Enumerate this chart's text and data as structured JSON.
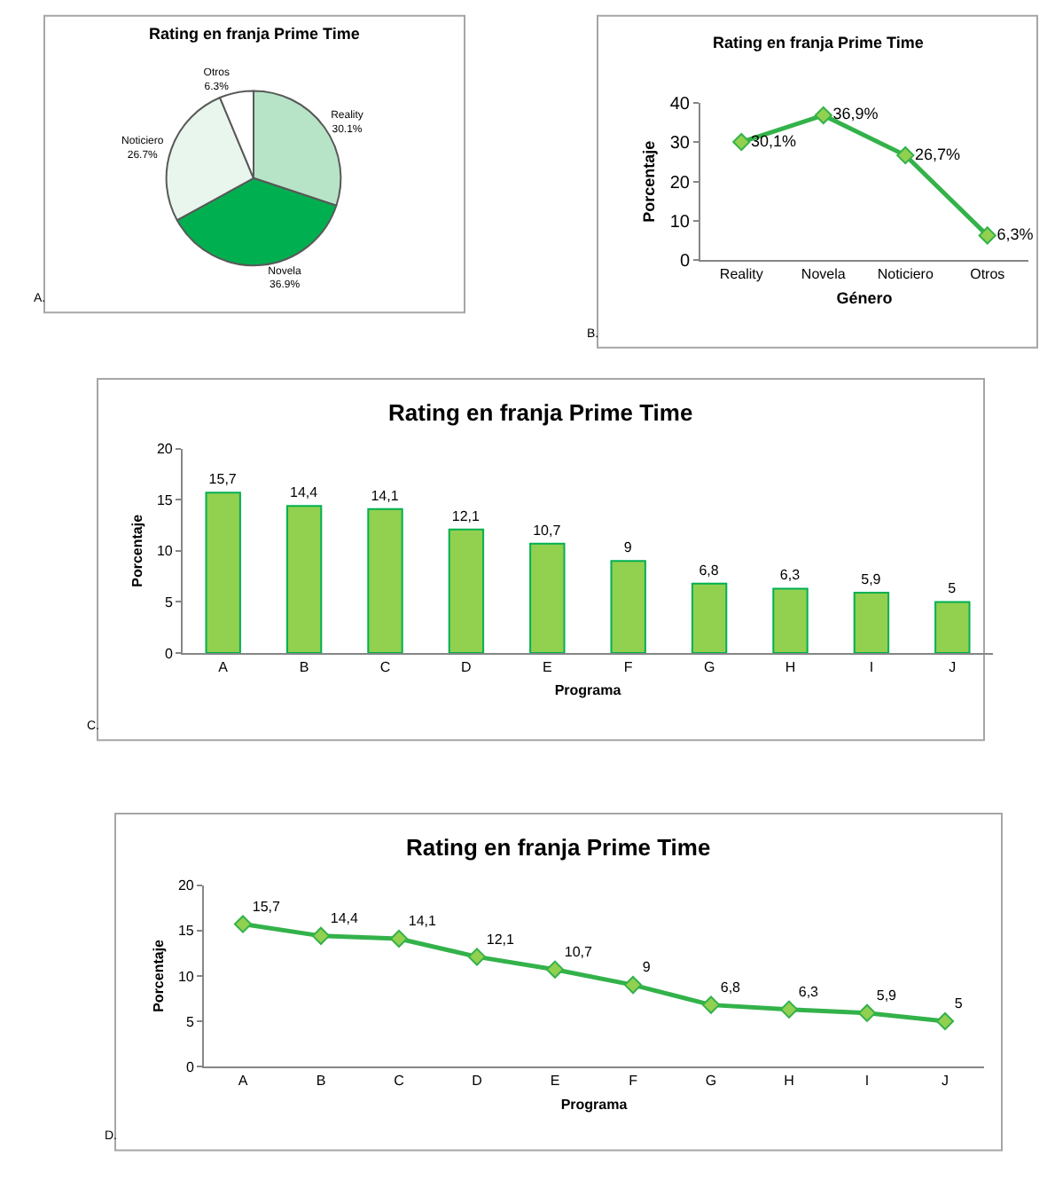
{
  "chart_data": [
    {
      "type": "pie",
      "title": "Rating en franja Prime Time",
      "categories": [
        "Reality",
        "Novela",
        "Noticiero",
        "Otros"
      ],
      "values": [
        30.1,
        36.9,
        26.7,
        6.3
      ],
      "value_labels": [
        "30.1%",
        "36.9%",
        "26.7%",
        "6.3%"
      ],
      "colors": [
        "#b7e4c7",
        "#00b050",
        "#e8f6ed",
        "#ffffff"
      ],
      "annotations": [
        "A."
      ]
    },
    {
      "type": "line",
      "title": "Rating en franja Prime Time",
      "xlabel": "Género",
      "ylabel": "Porcentaje",
      "categories": [
        "Reality",
        "Novela",
        "Noticiero",
        "Otros"
      ],
      "series": [
        {
          "color": "#33b24a",
          "values": [
            30.1,
            36.9,
            26.7,
            6.3
          ],
          "value_labels": [
            "30,1%",
            "36,9%",
            "26,7%",
            "6,3%"
          ]
        }
      ],
      "ylim": [
        0,
        40
      ],
      "yticks": [
        0,
        10,
        20,
        30,
        40
      ],
      "marker": "diamond",
      "line_style": "solid",
      "grid": false,
      "annotations": [
        "B."
      ]
    },
    {
      "type": "bar",
      "title": "Rating en franja Prime Time",
      "xlabel": "Programa",
      "ylabel": "Porcentaje",
      "categories": [
        "A",
        "B",
        "C",
        "D",
        "E",
        "F",
        "G",
        "H",
        "I",
        "J"
      ],
      "series": [
        {
          "color": "#92d050",
          "values": [
            15.7,
            14.4,
            14.1,
            12.1,
            10.7,
            9,
            6.8,
            6.3,
            5.9,
            5
          ],
          "value_labels": [
            "15,7",
            "14,4",
            "14,1",
            "12,1",
            "10,7",
            "9",
            "6,8",
            "6,3",
            "5,9",
            "5"
          ]
        }
      ],
      "ylim": [
        0,
        20
      ],
      "yticks": [
        0,
        5,
        10,
        15,
        20
      ],
      "grid": false,
      "annotations": [
        "C."
      ]
    },
    {
      "type": "line",
      "title": "Rating en franja Prime Time",
      "xlabel": "Programa",
      "ylabel": "Porcentaje",
      "categories": [
        "A",
        "B",
        "C",
        "D",
        "E",
        "F",
        "G",
        "H",
        "I",
        "J"
      ],
      "series": [
        {
          "color": "#33b24a",
          "values": [
            15.7,
            14.4,
            14.1,
            12.1,
            10.7,
            9,
            6.8,
            6.3,
            5.9,
            5
          ],
          "value_labels": [
            "15,7",
            "14,4",
            "14,1",
            "12,1",
            "10,7",
            "9",
            "6,8",
            "6,3",
            "5,9",
            "5"
          ]
        }
      ],
      "ylim": [
        0,
        20
      ],
      "yticks": [
        0,
        5,
        10,
        15,
        20
      ],
      "marker": "diamond",
      "line_style": "solid",
      "grid": false,
      "annotations": [
        "D."
      ]
    }
  ]
}
